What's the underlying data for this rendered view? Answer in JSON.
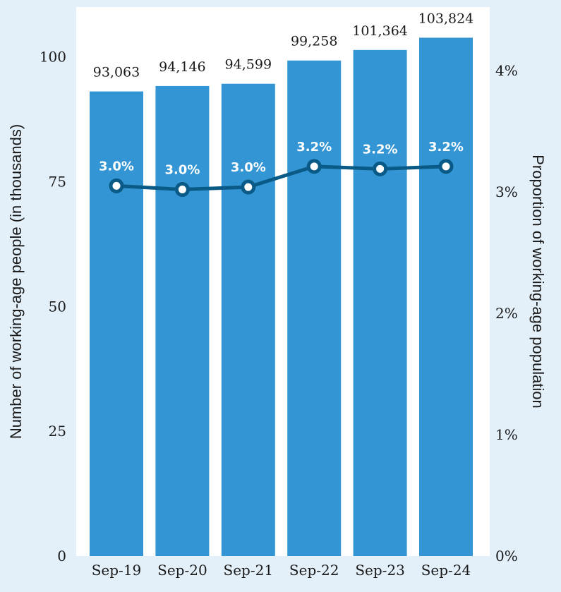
{
  "chart_data": {
    "type": "bar",
    "categories": [
      "Sep-19",
      "Sep-20",
      "Sep-21",
      "Sep-22",
      "Sep-23",
      "Sep-24"
    ],
    "series": [
      {
        "type": "bar",
        "axis": "left",
        "values": [
          93063,
          94146,
          94599,
          99258,
          101364,
          103824
        ],
        "labels": [
          "93,063",
          "94,146",
          "94,599",
          "99,258",
          "101,364",
          "103,824"
        ],
        "color": "#3395d3"
      },
      {
        "type": "line",
        "axis": "right",
        "values": [
          3.05,
          3.02,
          3.04,
          3.21,
          3.19,
          3.21
        ],
        "labels": [
          "3.0%",
          "3.0%",
          "3.0%",
          "3.2%",
          "3.2%",
          "3.2%"
        ],
        "color": "#0a5a87"
      }
    ],
    "ylabel": "Number of working-age people (in thousands)",
    "y2label": "Proportion of working-age population",
    "ylim": [
      0,
      110
    ],
    "y2lim": [
      0,
      4.4
    ],
    "yticks": [
      0,
      25,
      50,
      75,
      100
    ],
    "yticklabels": [
      "0",
      "25",
      "50",
      "75",
      "100"
    ],
    "y2ticks": [
      0,
      1,
      2,
      3,
      4
    ],
    "y2ticklabels": [
      "0%",
      "1%",
      "2%",
      "3%",
      "4%"
    ],
    "colors": {
      "background": "#e3f0fa",
      "plot_background": "#ffffff",
      "bar": "#3395d3",
      "line": "#0a5a87"
    },
    "grid": false,
    "legend": "none"
  }
}
